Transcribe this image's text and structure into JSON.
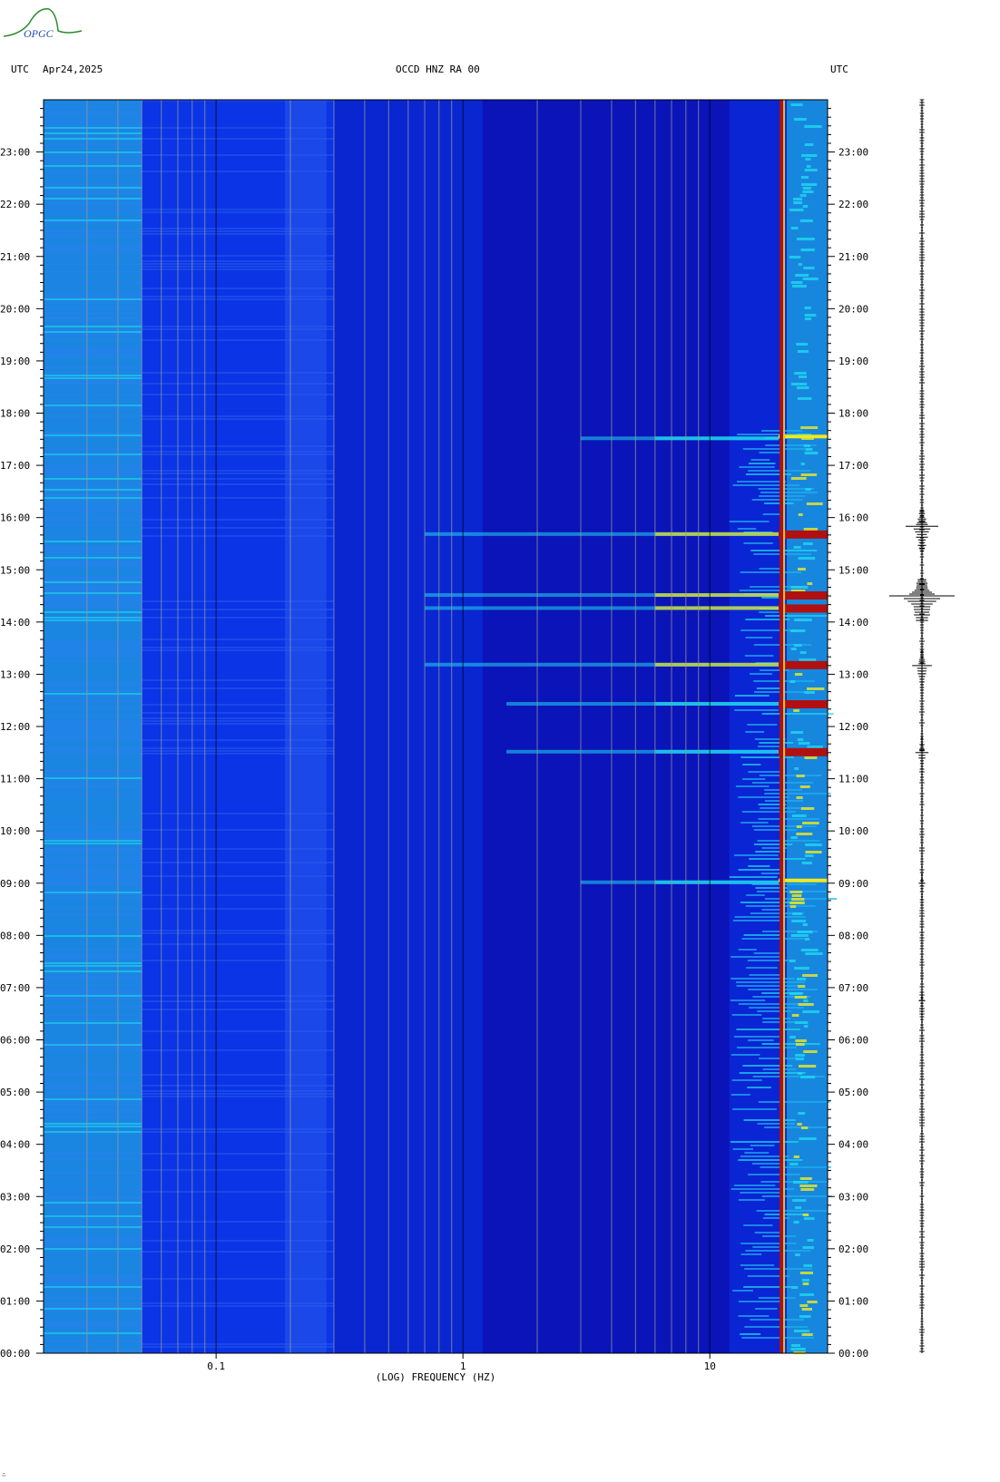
{
  "header": {
    "left_tz": "UTC",
    "date": "Apr24,2025",
    "station": "OCCD HNZ RA 00",
    "right_tz": "UTC"
  },
  "logo": {
    "text": "OPGC"
  },
  "footer_mark": "∴",
  "colors": {
    "background_low": "#0a14b8",
    "background_mid": "#0a3cf0",
    "high_low_band": "#1e9ae8",
    "cyan": "#20d8f0",
    "yellow": "#f0e820",
    "red": "#b01010",
    "gridline": "#9a9a9a"
  },
  "chart_data": {
    "type": "heatmap",
    "title": "OCCD HNZ RA 00",
    "xlabel": "(LOG) FREQUENCY (HZ)",
    "x_scale": "log",
    "xlim": [
      0.02,
      30
    ],
    "x_ticks": [
      {
        "value": 0.1,
        "label": "0.1"
      },
      {
        "value": 1,
        "label": "1"
      },
      {
        "value": 10,
        "label": "10"
      }
    ],
    "ylabel": "UTC",
    "y_ticks": [
      "00:00",
      "01:00",
      "02:00",
      "03:00",
      "04:00",
      "05:00",
      "06:00",
      "07:00",
      "08:00",
      "09:00",
      "10:00",
      "11:00",
      "12:00",
      "13:00",
      "14:00",
      "15:00",
      "16:00",
      "17:00",
      "18:00",
      "19:00",
      "20:00",
      "21:00",
      "22:00",
      "23:00"
    ],
    "ylim_hours": [
      0,
      24
    ],
    "persistent_line_hz": 19.5,
    "events": [
      {
        "time": "11:30",
        "level": "moderate"
      },
      {
        "time": "12:25",
        "level": "moderate"
      },
      {
        "time": "13:10",
        "level": "strong"
      },
      {
        "time": "14:15",
        "level": "strong"
      },
      {
        "time": "14:30",
        "level": "strong"
      },
      {
        "time": "15:40",
        "level": "strong"
      },
      {
        "time": "09:00",
        "level": "weak"
      },
      {
        "time": "17:30",
        "level": "weak"
      }
    ],
    "seismogram_events": [
      {
        "time": "11:30",
        "amplitude": 0.2
      },
      {
        "time": "13:10",
        "amplitude": 0.3
      },
      {
        "time": "14:30",
        "amplitude": 1.0
      },
      {
        "time": "15:50",
        "amplitude": 0.5
      },
      {
        "time": "09:00",
        "amplitude": 0.1
      },
      {
        "time": "06:45",
        "amplitude": 0.1
      }
    ]
  }
}
